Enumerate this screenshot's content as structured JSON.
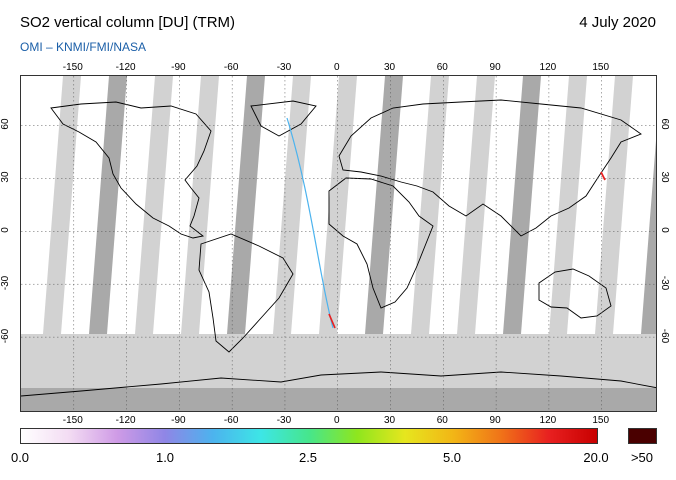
{
  "header": {
    "title": "SO2 vertical column [DU] (TRM)",
    "date": "4 July 2020",
    "credit": "OMI  –  KNMI/FMI/NASA"
  },
  "map": {
    "lon_ticks": [
      "-150",
      "-120",
      "-90",
      "-60",
      "-30",
      "0",
      "30",
      "60",
      "90",
      "120",
      "150"
    ],
    "lat_ticks": [
      "60",
      "30",
      "0",
      "-30",
      "-60"
    ],
    "colors": {
      "missing_data": "#d2d2d2",
      "missing_data_dark": "#a9a9a9",
      "coastline": "#000000",
      "gridline": "#555555"
    }
  },
  "colorbar": {
    "labels": [
      "0.0",
      "1.0",
      "2.5",
      "5.0",
      "20.0",
      ">50"
    ],
    "gradient": [
      "#ffffff",
      "#f3dcf3",
      "#cf9be6",
      "#8f86e6",
      "#4cb3ee",
      "#3de6e6",
      "#46e68c",
      "#8ee61e",
      "#e6e61e",
      "#f2b616",
      "#f07318",
      "#e82020",
      "#c80000"
    ],
    "overflow_color": "#4a0000"
  }
}
